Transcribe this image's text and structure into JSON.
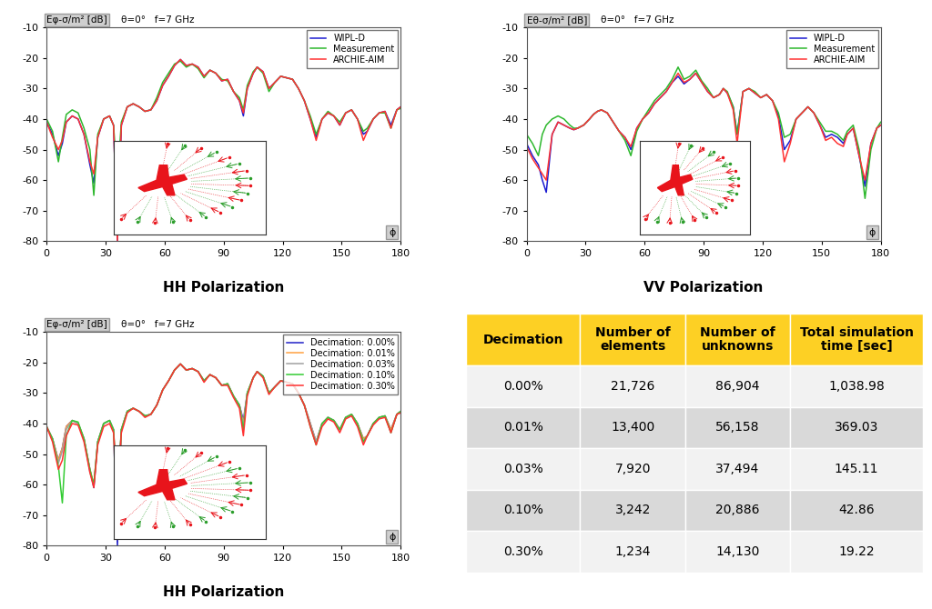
{
  "chart_data": [
    {
      "type": "line",
      "title": "HH Polarization",
      "ylabel": "Eφ-σ/m² [dB]",
      "subtitle": "θ=0°   f=7 GHz",
      "xlabel": "ϕ",
      "x": [
        0,
        3,
        6,
        8,
        10,
        13,
        16,
        19,
        22,
        24,
        26,
        29,
        32,
        34,
        36,
        38,
        41,
        44,
        47,
        50,
        53,
        56,
        59,
        62,
        65,
        68,
        71,
        74,
        77,
        80,
        83,
        86,
        89,
        92,
        95,
        98,
        100,
        102,
        105,
        107,
        110,
        113,
        116,
        119,
        122,
        125,
        128,
        131,
        134,
        137,
        140,
        143,
        146,
        149,
        152,
        155,
        158,
        161,
        163,
        166,
        169,
        172,
        175,
        178,
        180
      ],
      "series": [
        {
          "name": "WIPL-D",
          "color": "#1c1cd1",
          "values": [
            -41,
            -45,
            -52,
            -48,
            -41,
            -39,
            -40,
            -45,
            -55,
            -61,
            -46,
            -40,
            -39,
            -42,
            -80,
            -42,
            -36,
            -35,
            -36,
            -37.5,
            -37,
            -34,
            -29,
            -26,
            -22.5,
            -20.5,
            -22.5,
            -22,
            -23,
            -26,
            -24,
            -25,
            -27.5,
            -27,
            -31,
            -34,
            -39,
            -30,
            -25,
            -23,
            -24.5,
            -30,
            -28,
            -26,
            -26.5,
            -27,
            -30,
            -34,
            -40,
            -46,
            -40,
            -38,
            -39,
            -42,
            -38,
            -37,
            -40,
            -45,
            -44,
            -40,
            -38,
            -37.5,
            -42,
            -37,
            -36
          ]
        },
        {
          "name": "Measurement",
          "color": "#2db82d",
          "values": [
            -40,
            -44,
            -54,
            -46,
            -38.5,
            -37,
            -38,
            -43,
            -50,
            -65,
            -45,
            -40,
            -39,
            -42,
            -60,
            -41,
            -36,
            -35,
            -36,
            -37.5,
            -37,
            -33,
            -28,
            -25,
            -22,
            -21,
            -23,
            -22,
            -23.5,
            -26.5,
            -24,
            -25,
            -27,
            -27.5,
            -31,
            -33,
            -37,
            -29,
            -24.5,
            -23,
            -25,
            -31,
            -28,
            -26,
            -26.5,
            -27,
            -30,
            -34,
            -39,
            -45,
            -40,
            -37.5,
            -39,
            -41,
            -38,
            -37,
            -40,
            -44,
            -43,
            -40,
            -38,
            -38,
            -43,
            -37,
            -36.5
          ]
        },
        {
          "name": "ARCHIE-AIM",
          "color": "#ff3333",
          "values": [
            -41,
            -46,
            -50,
            -47,
            -41,
            -39,
            -40,
            -45,
            -54,
            -58,
            -46,
            -40,
            -39,
            -42,
            -80,
            -42,
            -36,
            -35,
            -36,
            -37.5,
            -37,
            -34,
            -29,
            -26,
            -22.5,
            -20.5,
            -22.5,
            -22,
            -23,
            -26,
            -24,
            -25,
            -27.5,
            -27,
            -31,
            -34,
            -38,
            -30,
            -25,
            -23,
            -24.5,
            -30,
            -28,
            -26,
            -26.5,
            -27,
            -30,
            -34,
            -40,
            -47,
            -40,
            -38,
            -39,
            -42,
            -38,
            -37,
            -40,
            -47,
            -44,
            -40,
            -38,
            -37.5,
            -43,
            -37,
            -36
          ]
        }
      ],
      "xlim": [
        0,
        180
      ],
      "ylim": [
        -80,
        -10
      ],
      "xticks": [
        0,
        30,
        60,
        90,
        120,
        150,
        180
      ],
      "yticks": [
        -80,
        -70,
        -60,
        -50,
        -40,
        -30,
        -20,
        -10
      ],
      "legend": "upper right",
      "grid": false
    },
    {
      "type": "line",
      "title": "VV Polarization",
      "ylabel": "Eθ-σ/m² [dB]",
      "subtitle": "θ=0°   f=7 GHz",
      "xlabel": "ϕ",
      "x": [
        0,
        3,
        6,
        8,
        10,
        13,
        16,
        19,
        22,
        24,
        26,
        29,
        32,
        34,
        36,
        38,
        41,
        44,
        47,
        50,
        53,
        56,
        59,
        62,
        65,
        68,
        71,
        74,
        77,
        80,
        83,
        86,
        89,
        92,
        95,
        98,
        100,
        102,
        105,
        107,
        110,
        113,
        116,
        119,
        122,
        125,
        128,
        131,
        134,
        137,
        140,
        143,
        146,
        149,
        152,
        155,
        158,
        161,
        163,
        166,
        169,
        172,
        175,
        178,
        180
      ],
      "series": [
        {
          "name": "WIPL-D",
          "color": "#1c1cd1",
          "values": [
            -48,
            -52,
            -55,
            -60,
            -64,
            -45,
            -41,
            -42,
            -43,
            -43.5,
            -43,
            -42,
            -40,
            -38.5,
            -37.5,
            -37,
            -38,
            -41,
            -44,
            -46,
            -50,
            -43,
            -40,
            -38,
            -35,
            -33,
            -31,
            -28,
            -26,
            -28.5,
            -27,
            -25,
            -28,
            -31,
            -33,
            -32,
            -30,
            -31.5,
            -36,
            -45,
            -31,
            -30,
            -31.5,
            -33,
            -32,
            -34,
            -39,
            -50,
            -47,
            -40,
            -38,
            -36,
            -38,
            -42,
            -46,
            -45,
            -46,
            -48,
            -45,
            -43,
            -52,
            -62,
            -48,
            -43,
            -42
          ]
        },
        {
          "name": "Measurement",
          "color": "#2db82d",
          "values": [
            -45,
            -48,
            -52,
            -45,
            -42,
            -40,
            -39,
            -40,
            -42,
            -43,
            -43,
            -42,
            -40,
            -38.5,
            -37.5,
            -37,
            -38,
            -41,
            -44,
            -47,
            -52,
            -44,
            -40,
            -37,
            -34,
            -32,
            -30,
            -27,
            -23,
            -27,
            -26,
            -24,
            -27.5,
            -30,
            -33,
            -32,
            -30,
            -31,
            -36,
            -45,
            -31,
            -30,
            -31,
            -33,
            -32,
            -34,
            -38,
            -46,
            -45,
            -40,
            -38,
            -36,
            -38,
            -41,
            -44,
            -44,
            -45,
            -47,
            -44,
            -42,
            -50,
            -66,
            -50,
            -43,
            -41
          ]
        },
        {
          "name": "ARCHIE-AIM",
          "color": "#ff3333",
          "values": [
            -49,
            -53,
            -56,
            -58,
            -60,
            -45,
            -41,
            -42,
            -43,
            -43.5,
            -43,
            -42,
            -40,
            -38.5,
            -37.5,
            -37,
            -38,
            -41,
            -44,
            -46,
            -49,
            -43,
            -40,
            -38,
            -35,
            -33,
            -31,
            -28,
            -25,
            -28,
            -27,
            -25,
            -28,
            -31,
            -33,
            -32,
            -30,
            -31.5,
            -37,
            -48,
            -31,
            -30,
            -31.5,
            -33,
            -32,
            -34,
            -40,
            -54,
            -48,
            -40,
            -38,
            -36,
            -38,
            -42,
            -47,
            -46,
            -48,
            -49,
            -45,
            -43,
            -52,
            -60,
            -48,
            -43,
            -42
          ]
        }
      ],
      "xlim": [
        0,
        180
      ],
      "ylim": [
        -80,
        -10
      ],
      "xticks": [
        0,
        30,
        60,
        90,
        120,
        150,
        180
      ],
      "yticks": [
        -80,
        -70,
        -60,
        -50,
        -40,
        -30,
        -20,
        -10
      ],
      "legend": "upper right",
      "grid": false
    },
    {
      "type": "line",
      "title": "HH Polarization",
      "ylabel": "Eφ-σ/m² [dB]",
      "subtitle": "θ=0°   f=7 GHz",
      "xlabel": "ϕ",
      "x": [
        0,
        3,
        6,
        8,
        10,
        13,
        16,
        19,
        22,
        24,
        26,
        29,
        32,
        34,
        36,
        38,
        41,
        44,
        47,
        50,
        53,
        56,
        59,
        62,
        65,
        68,
        71,
        74,
        77,
        80,
        83,
        86,
        89,
        92,
        95,
        98,
        100,
        102,
        105,
        107,
        110,
        113,
        116,
        119,
        122,
        125,
        128,
        131,
        134,
        137,
        140,
        143,
        146,
        149,
        152,
        155,
        158,
        161,
        163,
        166,
        169,
        172,
        175,
        178,
        180
      ],
      "series": [
        {
          "name": "Decimation: 0.00%",
          "color": "#2020c8",
          "values": [
            -41,
            -45,
            -52,
            -48,
            -41,
            -39,
            -40,
            -45,
            -55,
            -61,
            -46,
            -40,
            -39,
            -42,
            -80,
            -42,
            -36,
            -35,
            -36,
            -37.5,
            -37,
            -34,
            -29,
            -26,
            -22.5,
            -20.5,
            -22.5,
            -22,
            -23,
            -26,
            -24,
            -25,
            -27.5,
            -27,
            -31,
            -34,
            -39,
            -30,
            -25,
            -23,
            -24.5,
            -30,
            -28,
            -26,
            -26.5,
            -27,
            -30,
            -34,
            -40,
            -46,
            -40,
            -38,
            -39,
            -42,
            -38,
            -37,
            -40,
            -45,
            -44,
            -40,
            -38,
            -37.5,
            -42,
            -37,
            -36
          ]
        },
        {
          "name": "Decimation: 0.01%",
          "color": "#ffa040",
          "values": [
            -41,
            -45,
            -52,
            -48,
            -41,
            -39,
            -40,
            -45,
            -55,
            -60,
            -46,
            -40,
            -39,
            -42,
            -78,
            -42,
            -36,
            -35,
            -36,
            -37.5,
            -37,
            -34,
            -29,
            -26,
            -22.5,
            -20.5,
            -22.5,
            -22,
            -23,
            -26,
            -24,
            -25,
            -27.5,
            -27,
            -31,
            -34,
            -40,
            -30,
            -25,
            -23,
            -24.5,
            -30,
            -28,
            -26,
            -26.5,
            -27,
            -30,
            -34,
            -40,
            -46,
            -40,
            -38,
            -39,
            -42,
            -38,
            -37,
            -40,
            -45,
            -44,
            -40,
            -38,
            -37.5,
            -42,
            -37,
            -36
          ]
        },
        {
          "name": "Decimation: 0.03%",
          "color": "#a0a0a0",
          "values": [
            -41,
            -45,
            -53,
            -49,
            -42,
            -39,
            -40,
            -45,
            -56,
            -60,
            -46,
            -40,
            -39,
            -42,
            -65,
            -42,
            -36,
            -35,
            -36,
            -37.5,
            -37,
            -34,
            -29,
            -26,
            -22.5,
            -20.5,
            -22.5,
            -22,
            -23,
            -26,
            -24,
            -25,
            -27.5,
            -27,
            -31,
            -34,
            -41,
            -30,
            -25,
            -23,
            -24.5,
            -30,
            -28,
            -26,
            -26.5,
            -27,
            -30,
            -34,
            -40,
            -46,
            -40,
            -38,
            -39,
            -42,
            -38,
            -37,
            -40,
            -46,
            -44,
            -40,
            -38,
            -37.5,
            -43,
            -37,
            -36
          ]
        },
        {
          "name": "Decimation: 0.10%",
          "color": "#33cc33",
          "values": [
            -41,
            -45,
            -54,
            -66,
            -44,
            -39,
            -39.5,
            -45,
            -55,
            -60,
            -46,
            -40,
            -39,
            -42,
            -62,
            -42,
            -36,
            -35,
            -36,
            -37.5,
            -37,
            -34,
            -29,
            -26,
            -22.5,
            -20.5,
            -22.5,
            -22,
            -23,
            -26,
            -24,
            -25,
            -27.5,
            -27,
            -31,
            -34,
            -42,
            -30,
            -25,
            -23,
            -24.5,
            -30,
            -28,
            -26,
            -26.5,
            -27,
            -30,
            -34,
            -41,
            -47,
            -40,
            -38,
            -39,
            -42,
            -38,
            -37,
            -40,
            -46,
            -44,
            -40,
            -38,
            -37.5,
            -43,
            -37,
            -36
          ]
        },
        {
          "name": "Decimation: 0.30%",
          "color": "#ff3030",
          "values": [
            -41,
            -46,
            -55,
            -52,
            -44,
            -40,
            -40.5,
            -46,
            -56,
            -61,
            -47,
            -41,
            -40,
            -43,
            -60,
            -43,
            -36.5,
            -35,
            -36,
            -38,
            -37,
            -34,
            -29,
            -26,
            -22.5,
            -20.5,
            -22.5,
            -22,
            -23,
            -26.5,
            -24,
            -25,
            -27.5,
            -27.5,
            -31.5,
            -35,
            -44,
            -31,
            -25,
            -23,
            -25,
            -30.5,
            -28,
            -26,
            -26.5,
            -27,
            -30,
            -34,
            -41,
            -47,
            -41,
            -38.5,
            -39.5,
            -43,
            -38.5,
            -37.5,
            -41,
            -47,
            -44,
            -40.5,
            -38.5,
            -38,
            -43,
            -37,
            -36.5
          ]
        }
      ],
      "xlim": [
        0,
        180
      ],
      "ylim": [
        -80,
        -10
      ],
      "xticks": [
        0,
        30,
        60,
        90,
        120,
        150,
        180
      ],
      "yticks": [
        -80,
        -70,
        -60,
        -50,
        -40,
        -30,
        -20,
        -10
      ],
      "legend": "upper right",
      "grid": false
    }
  ],
  "table": {
    "header": [
      "Decimation",
      "Number of elements",
      "Number of unknowns",
      "Total simulation time [sec]"
    ],
    "rows": [
      [
        "0.00%",
        "21,726",
        "86,904",
        "1,038.98"
      ],
      [
        "0.01%",
        "13,400",
        "56,158",
        "369.03"
      ],
      [
        "0.03%",
        "7,920",
        "37,494",
        "145.11"
      ],
      [
        "0.10%",
        "3,242",
        "20,886",
        "42.86"
      ],
      [
        "0.30%",
        "1,234",
        "14,130",
        "19.22"
      ]
    ]
  }
}
